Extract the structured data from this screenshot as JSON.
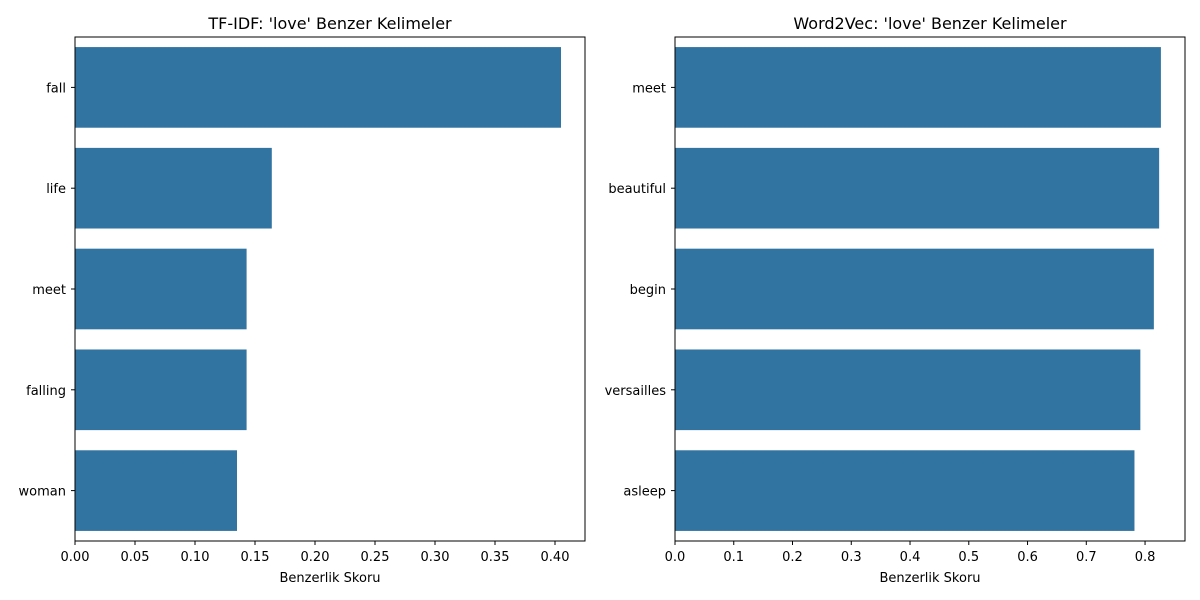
{
  "colors": {
    "bar": "#3274a1",
    "axis": "#000000",
    "background": "#ffffff"
  },
  "chart_data": [
    {
      "type": "bar",
      "orientation": "horizontal",
      "title": "TF-IDF: 'love' Benzer Kelimeler",
      "xlabel": "Benzerlik Skoru",
      "ylabel": "",
      "categories": [
        "fall",
        "life",
        "meet",
        "falling",
        "woman"
      ],
      "values": [
        0.405,
        0.164,
        0.143,
        0.143,
        0.135
      ],
      "xlim": [
        0,
        0.425
      ],
      "xticks": [
        0.0,
        0.05,
        0.1,
        0.15,
        0.2,
        0.25,
        0.3,
        0.35,
        0.4
      ],
      "xtick_labels": [
        "0.00",
        "0.05",
        "0.10",
        "0.15",
        "0.20",
        "0.25",
        "0.30",
        "0.35",
        "0.40"
      ],
      "grid": false
    },
    {
      "type": "bar",
      "orientation": "horizontal",
      "title": "Word2Vec: 'love' Benzer Kelimeler",
      "xlabel": "Benzerlik Skoru",
      "ylabel": "",
      "categories": [
        "meet",
        "beautiful",
        "begin",
        "versailles",
        "asleep"
      ],
      "values": [
        0.827,
        0.824,
        0.815,
        0.792,
        0.782
      ],
      "xlim": [
        0,
        0.868
      ],
      "xticks": [
        0,
        0.1,
        0.2,
        0.3,
        0.4,
        0.5,
        0.6,
        0.7,
        0.8
      ],
      "xtick_labels": [
        "0.0",
        "0.1",
        "0.2",
        "0.3",
        "0.4",
        "0.5",
        "0.6",
        "0.7",
        "0.8"
      ],
      "grid": false
    }
  ]
}
